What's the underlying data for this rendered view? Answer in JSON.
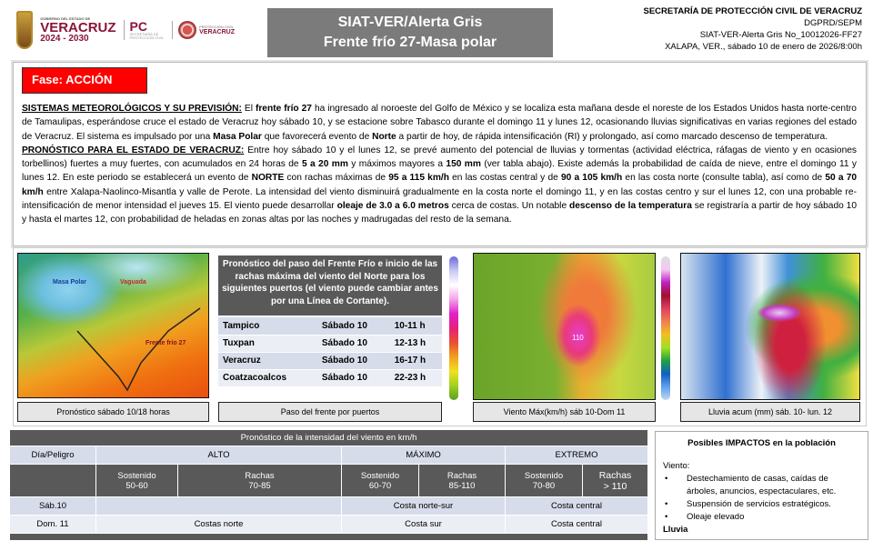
{
  "header": {
    "logos": {
      "gobierno": "GOBIERNO DEL ESTADO DE",
      "veracruz": "VERACRUZ",
      "period": "2024 - 2030",
      "pc": "PC",
      "pc_sub": "SECRETARÍA DE PROTECCIÓN CIVIL",
      "pcv_sub": "PROTECCIÓN CIVIL",
      "pcv": "VERACRUZ"
    },
    "title_line1": "SIAT-VER/Alerta Gris",
    "title_line2": "Frente frío 27-Masa polar",
    "right": [
      "SECRETARÍA DE PROTECCIÓN CIVIL DE VERACRUZ",
      "DGPRD/SEPM",
      "SIAT-VER-Alerta Gris No_10012026-FF27",
      "XALAPA, VER., sábado 10 de enero de 2026/8:00h"
    ]
  },
  "fase": {
    "label": "Fase: ACCIÓN",
    "color": "#ff0000"
  },
  "body": {
    "s1_head": "SISTEMAS METEOROLÓGICOS Y SU PREVISIÓN:",
    "s1_a": " El ",
    "s1_b": "frente frío 27",
    "s1_c": " ha ingresado al noroeste del Golfo de México y se localiza esta mañana desde el noreste de los Estados Unidos hasta norte-centro de Tamaulipas, esperándose cruce el estado de Veracruz hoy sábado 10, y se estacione sobre Tabasco durante el domingo 11 y lunes 12, ocasionando lluvias significativas en varias regiones del estado de Veracruz. El sistema es impulsado por una ",
    "s1_d": "Masa Polar",
    "s1_e": " que favorecerá evento de ",
    "s1_f": "Norte",
    "s1_g": " a partir de hoy, de rápida intensificación (RI) y prolongado, así como marcado descenso de temperatura.",
    "s2_head": "PRONÓSTICO PARA EL ESTADO DE VERACRUZ:",
    "s2_a": " Entre hoy sábado 10 y el lunes 12, se prevé aumento del potencial de lluvias y tormentas (actividad eléctrica, ráfagas de viento y en ocasiones torbellinos) fuertes a muy fuertes, con acumulados en 24 horas de ",
    "s2_b": "5 a 20 mm",
    "s2_c": " y máximos mayores a ",
    "s2_d": "150 mm",
    "s2_e": " (ver tabla abajo). Existe además la probabilidad de caída de nieve, entre el domingo 11 y lunes 12. En este periodo se establecerá un evento de ",
    "s2_f": "NORTE",
    "s2_g": " con rachas máximas de ",
    "s2_h": "95 a 115 km/h",
    "s2_i": " en las costas central y de ",
    "s2_j": "90 a 105 km/h",
    "s2_k": " en las costa norte (consulte tabla), así como de ",
    "s2_l": "50 a 70 km/h",
    "s2_m": " entre Xalapa-Naolinco-Misantla y valle de Perote. La intensidad del viento disminuirá gradualmente en la costa norte el domingo 11, y en las costas centro y sur el lunes 12, con una probable re-intensificación de menor intensidad el jueves 15. El viento puede desarrollar ",
    "s2_n": "oleaje de 3.0 a 6.0 metros",
    "s2_o": " cerca de costas. Un notable ",
    "s2_p": "descenso de la temperatura",
    "s2_q": " se registraría a partir de hoy sábado 10  y hasta el martes 12, con probabilidad de heladas en zonas altas por las noches y madrugadas del resto de la semana."
  },
  "map1": {
    "label_polar": "Masa Polar",
    "label_vaguada": "Vaguada",
    "label_front": "Frente frío 27",
    "caption": "Pronóstico sábado 10/18 horas"
  },
  "ports": {
    "header": "Pronóstico del paso del Frente Frío e inicio de las rachas máxima  del viento del Norte para los siguientes puertos (el viento puede cambiar antes por una Línea de Cortante).",
    "rows": [
      [
        "Tampico",
        "Sábado 10",
        "10-11 h"
      ],
      [
        "Tuxpan",
        "Sábado 10",
        "12-13 h"
      ],
      [
        "Veracruz",
        "Sábado 10",
        "16-17 h"
      ],
      [
        "Coatzacoalcos",
        "Sábado 10",
        "22-23 h"
      ]
    ],
    "caption": "Paso del frente por puertos"
  },
  "map2": {
    "value": "110",
    "caption": "Viento Máx(km/h) sáb 10-Dom 11"
  },
  "map3": {
    "caption": "Lluvia acum (mm) sáb. 10- lun. 12"
  },
  "wind_table": {
    "title": "Pronóstico de la intensidad del viento en km/h",
    "col0": "Día/Peligro",
    "alto": "ALTO",
    "maximo": "MÁXIMO",
    "extremo": "EXTREMO",
    "sub": [
      [
        "Sostenido",
        "50-60"
      ],
      [
        "Rachas",
        "70-85"
      ],
      [
        "Sostenido",
        "60-70"
      ],
      [
        "Rachas",
        "85-110"
      ],
      [
        "Sostenido",
        "70-80"
      ],
      [
        "Rachas",
        "> 110"
      ]
    ],
    "rows": [
      {
        "day": "Sáb.10",
        "alto": "",
        "maximo": "Costa norte-sur",
        "extremo": "Costa central"
      },
      {
        "day": "Dom. 11",
        "alto": "Costas norte",
        "maximo": "Costa sur",
        "extremo": "Costa central"
      }
    ]
  },
  "impacts": {
    "title": "Posibles IMPACTOS en la población",
    "viento_label": "Viento:",
    "viento": [
      "Destechamiento de casas, caídas de árboles, anuncios, espectaculares, etc.",
      "Suspensión de servicios estratégicos.",
      "Oleaje elevado"
    ],
    "lluvia_label": "Lluvia"
  }
}
